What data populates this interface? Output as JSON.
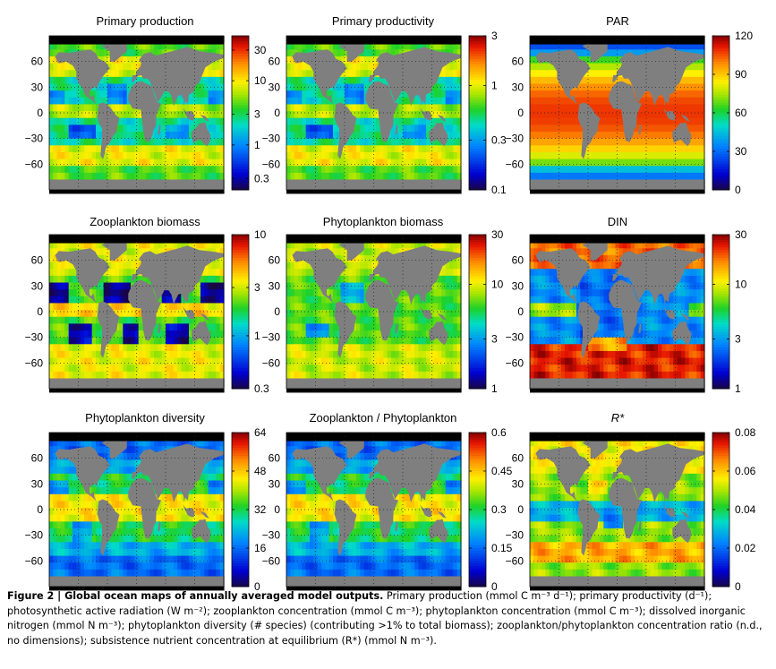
{
  "chart_data": [
    {
      "type": "heatmap",
      "title": "Primary production",
      "title_italic": false,
      "colorbar": {
        "ticks": [
          "30",
          "10",
          "3",
          "1",
          "0.3"
        ],
        "scale": "log",
        "range": [
          0.2,
          50
        ]
      },
      "lat_ticks": [
        "60",
        "30",
        "0",
        "−30",
        "−60"
      ],
      "palette": "blue-low",
      "field": "prod"
    },
    {
      "type": "heatmap",
      "title": "Primary productivity",
      "title_italic": false,
      "colorbar": {
        "ticks": [
          "3",
          "1",
          "0.3",
          "0.1"
        ],
        "scale": "log",
        "range": [
          0.1,
          3
        ]
      },
      "lat_ticks": [
        "60",
        "30",
        "0",
        "−30",
        "−60"
      ],
      "palette": "blue-low",
      "field": "prod"
    },
    {
      "type": "heatmap",
      "title": "PAR",
      "title_italic": false,
      "colorbar": {
        "ticks": [
          "120",
          "90",
          "60",
          "30",
          "0"
        ],
        "scale": "linear",
        "range": [
          0,
          120
        ]
      },
      "lat_ticks": [
        "60",
        "30",
        "0",
        "−30",
        "−60"
      ],
      "palette": "blue-low",
      "field": "par"
    },
    {
      "type": "heatmap",
      "title": "Zooplankton biomass",
      "title_italic": false,
      "colorbar": {
        "ticks": [
          "10",
          "3",
          "1",
          "0.3"
        ],
        "scale": "log",
        "range": [
          0.3,
          10
        ]
      },
      "lat_ticks": [
        "60",
        "30",
        "0",
        "−30",
        "−60"
      ],
      "palette": "blue-low",
      "field": "zoo"
    },
    {
      "type": "heatmap",
      "title": "Phytoplankton biomass",
      "title_italic": false,
      "colorbar": {
        "ticks": [
          "30",
          "10",
          "3",
          "1"
        ],
        "scale": "log",
        "range": [
          1,
          30
        ]
      },
      "lat_ticks": [
        "60",
        "30",
        "0",
        "−30",
        "−60"
      ],
      "palette": "blue-low",
      "field": "phy"
    },
    {
      "type": "heatmap",
      "title": "DIN",
      "title_italic": false,
      "colorbar": {
        "ticks": [
          "30",
          "10",
          "3",
          "1"
        ],
        "scale": "log",
        "range": [
          1,
          30
        ]
      },
      "lat_ticks": [
        "60",
        "30",
        "0",
        "−30",
        "−60"
      ],
      "palette": "blue-low",
      "field": "din"
    },
    {
      "type": "heatmap",
      "title": "Phytoplankton diversity",
      "title_italic": false,
      "colorbar": {
        "ticks": [
          "64",
          "48",
          "32",
          "16",
          "0"
        ],
        "scale": "linear",
        "range": [
          0,
          64
        ]
      },
      "lat_ticks": [
        "60",
        "30",
        "0",
        "−30",
        "−60"
      ],
      "palette": "blue-low",
      "field": "div"
    },
    {
      "type": "heatmap",
      "title": "Zooplankton / Phytoplankton",
      "title_italic": false,
      "colorbar": {
        "ticks": [
          "0.6",
          "0.45",
          "0.3",
          "0.15",
          "0"
        ],
        "scale": "linear",
        "range": [
          0,
          0.6
        ]
      },
      "lat_ticks": [
        "60",
        "30",
        "0",
        "−30",
        "−60"
      ],
      "palette": "blue-low",
      "field": "div"
    },
    {
      "type": "heatmap",
      "title": "R*",
      "title_italic": true,
      "colorbar": {
        "ticks": [
          "0.08",
          "0.06",
          "0.04",
          "0.02",
          "0"
        ],
        "scale": "linear",
        "range": [
          0,
          0.08
        ]
      },
      "lat_ticks": [
        "60",
        "30",
        "0",
        "−30",
        "−60"
      ],
      "palette": "blue-low",
      "field": "rstar"
    }
  ],
  "caption": {
    "label": "Figure 2 | Global ocean maps of annually averaged model outputs.",
    "text": " Primary production (mmol C m⁻³ d⁻¹); primary productivity (d⁻¹); photosynthetic active radiation (W m⁻²); zooplankton concentration (mmol C m⁻³); phytoplankton concentration (mmol C m⁻³); dissolved inorganic nitrogen (mmol N m⁻³); phytoplankton diversity (# species) (contributing >1% to total biomass); zooplankton/phytoplankton concentration ratio (n.d., no dimensions); subsistence nutrient concentration at equilibrium (R*) (mmol N m⁻³)."
  }
}
